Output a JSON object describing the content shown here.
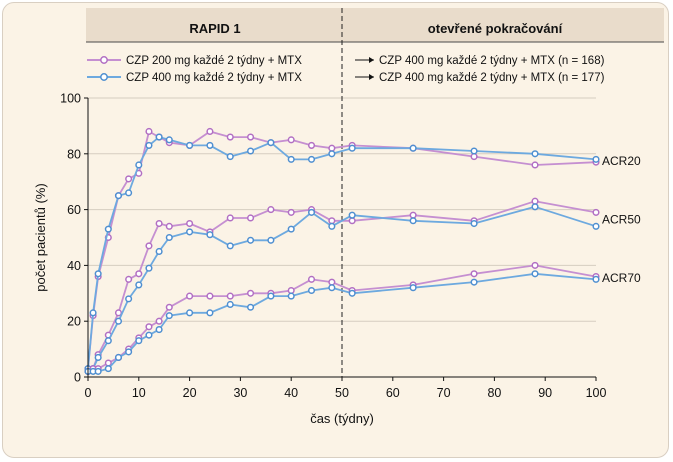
{
  "header": {
    "section_left": "RAPID 1",
    "section_right": "otevřené pokračování"
  },
  "legend": {
    "entries": [
      {
        "left": "CZP 200 mg každé 2 týdny + MTX",
        "right": "CZP 400 mg každé 2 týdny + MTX (n = 168)",
        "color": "#c58fd1",
        "marker_color": "#b26fc3"
      },
      {
        "left": "CZP 400 mg každé 2 týdny + MTX",
        "right": "CZP 400 mg každé 2 týdny + MTX (n = 177)",
        "color": "#6da9df",
        "marker_color": "#4f8fd0"
      }
    ]
  },
  "chart_data": {
    "type": "line",
    "xlabel": "čas (týdny)",
    "ylabel": "počet pacientů (%)",
    "xlim": [
      0,
      100
    ],
    "ylim": [
      0,
      100
    ],
    "xticks": [
      0,
      10,
      20,
      30,
      40,
      50,
      60,
      70,
      80,
      90,
      100
    ],
    "yticks": [
      0,
      20,
      40,
      60,
      80,
      100
    ],
    "divider_x": 50,
    "groups": [
      {
        "name": "ACR20",
        "series": [
          {
            "legend_index": 0,
            "x": [
              0,
              1,
              2,
              4,
              6,
              8,
              10,
              12,
              14,
              16,
              20,
              24,
              28,
              32,
              36,
              40,
              44,
              48,
              52,
              64,
              76,
              88,
              100
            ],
            "y": [
              3,
              22,
              36,
              50,
              65,
              71,
              73,
              88,
              86,
              84,
              83,
              88,
              86,
              86,
              84,
              85,
              83,
              82,
              83,
              82,
              79,
              76,
              77
            ]
          },
          {
            "legend_index": 1,
            "x": [
              0,
              1,
              2,
              4,
              6,
              8,
              10,
              12,
              14,
              16,
              20,
              24,
              28,
              32,
              36,
              40,
              44,
              48,
              52,
              64,
              76,
              88,
              100
            ],
            "y": [
              3,
              23,
              37,
              53,
              65,
              66,
              76,
              83,
              86,
              85,
              83,
              83,
              79,
              81,
              84,
              78,
              78,
              80,
              82,
              82,
              81,
              80,
              78
            ]
          }
        ]
      },
      {
        "name": "ACR50",
        "series": [
          {
            "legend_index": 0,
            "x": [
              0,
              1,
              2,
              4,
              6,
              8,
              10,
              12,
              14,
              16,
              20,
              24,
              28,
              32,
              36,
              40,
              44,
              48,
              52,
              64,
              76,
              88,
              100
            ],
            "y": [
              2,
              3,
              8,
              15,
              23,
              35,
              37,
              47,
              55,
              54,
              55,
              52,
              57,
              57,
              60,
              59,
              60,
              56,
              56,
              58,
              56,
              63,
              59
            ]
          },
          {
            "legend_index": 1,
            "x": [
              0,
              1,
              2,
              4,
              6,
              8,
              10,
              12,
              14,
              16,
              20,
              24,
              28,
              32,
              36,
              40,
              44,
              48,
              52,
              64,
              76,
              88,
              100
            ],
            "y": [
              2,
              3,
              7,
              13,
              20,
              28,
              33,
              39,
              45,
              50,
              52,
              51,
              47,
              49,
              49,
              53,
              59,
              54,
              58,
              56,
              55,
              61,
              54
            ]
          }
        ]
      },
      {
        "name": "ACR70",
        "series": [
          {
            "legend_index": 0,
            "x": [
              0,
              1,
              2,
              4,
              6,
              8,
              10,
              12,
              14,
              16,
              20,
              24,
              28,
              32,
              36,
              40,
              44,
              48,
              52,
              64,
              76,
              88,
              100
            ],
            "y": [
              2,
              3,
              3,
              5,
              7,
              10,
              14,
              18,
              20,
              25,
              29,
              29,
              29,
              30,
              30,
              31,
              35,
              34,
              31,
              33,
              37,
              40,
              36
            ]
          },
          {
            "legend_index": 1,
            "x": [
              0,
              1,
              2,
              4,
              6,
              8,
              10,
              12,
              14,
              16,
              20,
              24,
              28,
              32,
              36,
              40,
              44,
              48,
              52,
              64,
              76,
              88,
              100
            ],
            "y": [
              2,
              2,
              2,
              3,
              7,
              9,
              13,
              15,
              17,
              22,
              23,
              23,
              26,
              25,
              29,
              29,
              31,
              32,
              30,
              32,
              34,
              37,
              35
            ]
          }
        ]
      }
    ]
  }
}
